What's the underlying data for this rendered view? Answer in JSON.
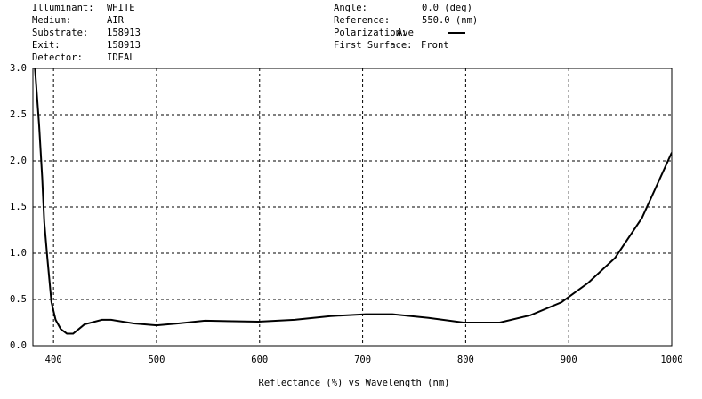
{
  "chart_data": {
    "type": "line",
    "info_left": [
      {
        "label": "Illuminant:",
        "value": "WHITE"
      },
      {
        "label": "Medium:",
        "value": "AIR"
      },
      {
        "label": "Substrate:",
        "value": "158913"
      },
      {
        "label": "Exit:",
        "value": "158913"
      },
      {
        "label": "Detector:",
        "value": "IDEAL"
      }
    ],
    "info_right": [
      {
        "label": "Angle:",
        "value": "0.0 (deg)"
      },
      {
        "label": "Reference:",
        "value": "550.0 (nm)"
      },
      {
        "label": "Polarization:",
        "value": null
      },
      {
        "label": "First Surface:",
        "value": "Front"
      }
    ],
    "x_label": "Reflectance (%)  vs  Wavelength (nm)",
    "xlim": [
      380,
      1000
    ],
    "xticks": [
      400,
      500,
      600,
      700,
      800,
      900,
      1000
    ],
    "ylim": [
      0,
      3
    ],
    "yticks": [
      {
        "value": 0,
        "label": "0.0"
      },
      {
        "value": 0.5,
        "label": "0.5"
      },
      {
        "value": 1,
        "label": "1.0"
      },
      {
        "value": 1.5,
        "label": "1.5"
      },
      {
        "value": 2,
        "label": "2.0"
      },
      {
        "value": 2.5,
        "label": "2.5"
      },
      {
        "value": 3,
        "label": "3.0"
      }
    ],
    "grid": true,
    "series": [
      {
        "name": "Ave",
        "color": "#000000",
        "x": [
          382,
          386,
          389,
          391,
          394,
          398,
          402,
          407,
          413,
          419,
          430,
          447,
          456,
          478,
          500,
          521,
          547,
          599,
          634,
          669,
          703,
          729,
          764,
          798,
          833,
          863,
          893,
          919,
          945,
          971,
          1000
        ],
        "values": [
          3.0,
          2.39,
          1.82,
          1.34,
          0.95,
          0.47,
          0.28,
          0.18,
          0.13,
          0.13,
          0.23,
          0.28,
          0.28,
          0.24,
          0.22,
          0.24,
          0.27,
          0.26,
          0.28,
          0.32,
          0.34,
          0.34,
          0.3,
          0.25,
          0.25,
          0.33,
          0.47,
          0.68,
          0.95,
          1.38,
          2.09
        ]
      }
    ]
  }
}
